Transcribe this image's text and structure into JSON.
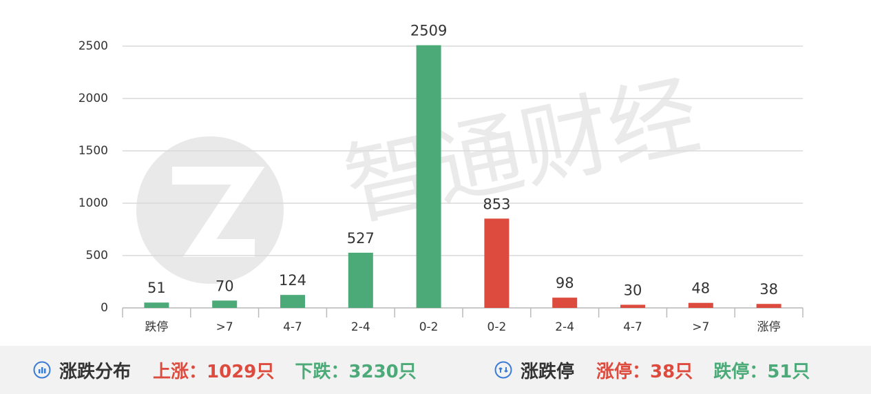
{
  "chart_data": {
    "type": "bar",
    "watermark": "智通财经",
    "categories": [
      "跌停",
      ">7",
      "4-7",
      "2-4",
      "0-2",
      "0-2",
      "2-4",
      "4-7",
      ">7",
      "涨停"
    ],
    "values": [
      51,
      70,
      124,
      527,
      2509,
      853,
      98,
      30,
      48,
      38
    ],
    "colors": [
      "#4caa78",
      "#4caa78",
      "#4caa78",
      "#4caa78",
      "#4caa78",
      "#dc4b3e",
      "#dc4b3e",
      "#dc4b3e",
      "#dc4b3e",
      "#dc4b3e"
    ],
    "ylim": [
      0,
      2500
    ],
    "yticks": [
      0,
      500,
      1000,
      1500,
      2000,
      2500
    ],
    "grid": true
  },
  "footer": {
    "left": {
      "title": "涨跌分布",
      "stats": [
        {
          "text": "上涨：1029只",
          "color": "#dc4b3e"
        },
        {
          "text": "下跌：3230只",
          "color": "#4caa78"
        }
      ]
    },
    "right": {
      "title": "涨跌停",
      "stats": [
        {
          "text": "涨停：38只",
          "color": "#dc4b3e"
        },
        {
          "text": "跌停：51只",
          "color": "#4caa78"
        }
      ]
    }
  }
}
